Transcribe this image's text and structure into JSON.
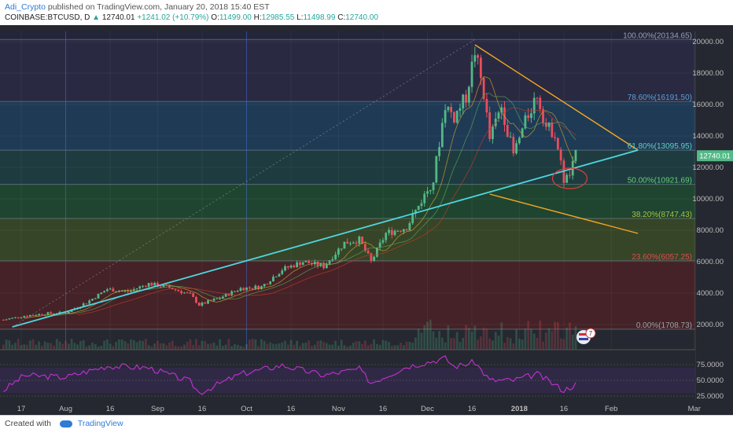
{
  "header": {
    "author": "Adi_Crypto",
    "published": "published on TradingView.com, January 20, 2018 15:40 EST",
    "symbol": "COINBASE:BTCUSD, D",
    "last": "12740.01",
    "change": "+1241.02 (+10.79%)",
    "open_label": "O:",
    "open": "11499.00",
    "high_label": "H:",
    "high": "12985.55",
    "low_label": "L:",
    "low": "11498.99",
    "close_label": "C:",
    "close": "12740.00"
  },
  "footer": {
    "created_with": "Created with",
    "brand": "TradingView"
  },
  "colors": {
    "background": "#252830",
    "up": "#53b987",
    "down": "#eb4d5c",
    "trendline": "#4fd6e0",
    "wedge": "#f5a623",
    "rsi": "#c231d0",
    "fib_zone_top": "#2a2a44",
    "fib_zone_786": "#1e3d5c",
    "fib_zone_618": "#1d3f42",
    "fib_zone_50": "#1f4a30",
    "fib_zone_382": "#3a4a26",
    "fib_zone_236": "#4a2126"
  },
  "chart_data": {
    "type": "candlestick",
    "price_axis": {
      "ticks": [
        2000,
        4000,
        6000,
        8000,
        10000,
        12000,
        14000,
        16000,
        18000,
        20000
      ],
      "labels": [
        "2000.00",
        "4000.00",
        "6000.00",
        "8000.00",
        "10000.00",
        "12000.00",
        "14000.00",
        "16000.00",
        "18000.00",
        "20000.00"
      ],
      "range": [
        1000,
        21400
      ]
    },
    "last_price_label": "12740.01",
    "time_axis": {
      "labels": [
        "17",
        "Aug",
        "16",
        "Sep",
        "16",
        "Oct",
        "16",
        "Nov",
        "16",
        "Dec",
        "16",
        "2018",
        "16",
        "Feb",
        "Mar"
      ],
      "dates": [
        "2017-07-17",
        "2017-08-01",
        "2017-08-16",
        "2017-09-01",
        "2017-09-16",
        "2017-10-01",
        "2017-10-16",
        "2017-11-01",
        "2017-11-16",
        "2017-12-01",
        "2017-12-16",
        "2018-01-01",
        "2018-01-16",
        "2018-02-01",
        "2018-03-01"
      ]
    },
    "fibonacci": [
      {
        "label": "100.00%(20134.65)",
        "price": 20134.65
      },
      {
        "label": "78.60%(16191.50)",
        "price": 16191.5
      },
      {
        "label": "61.80%(13095.95)",
        "price": 13095.95
      },
      {
        "label": "50.00%(10921.69)",
        "price": 10921.69
      },
      {
        "label": "38.20%(8747.43)",
        "price": 8747.43
      },
      {
        "label": "23.60%(6057.25)",
        "price": 6057.25
      },
      {
        "label": "0.00%(1708.73)",
        "price": 1708.73
      }
    ],
    "trendline": {
      "from": [
        "2017-07-14",
        1850
      ],
      "to": [
        "2018-02-10",
        13100
      ]
    },
    "wedge_upper": {
      "from": [
        "2017-12-17",
        19800
      ],
      "to": [
        "2018-02-10",
        13100
      ]
    },
    "wedge_lower": {
      "from": [
        "2017-12-22",
        10300
      ],
      "to": [
        "2018-02-10",
        7800
      ]
    },
    "close_prices_weekly": [
      [
        "2017-07-11",
        2300
      ],
      [
        "2017-07-18",
        2550
      ],
      [
        "2017-07-25",
        2700
      ],
      [
        "2017-08-01",
        2750
      ],
      [
        "2017-08-08",
        3400
      ],
      [
        "2017-08-15",
        4250
      ],
      [
        "2017-08-22",
        4100
      ],
      [
        "2017-08-29",
        4600
      ],
      [
        "2017-09-05",
        4350
      ],
      [
        "2017-09-12",
        3900
      ],
      [
        "2017-09-15",
        3250
      ],
      [
        "2017-09-22",
        3700
      ],
      [
        "2017-09-29",
        4300
      ],
      [
        "2017-10-06",
        4400
      ],
      [
        "2017-10-13",
        5500
      ],
      [
        "2017-10-20",
        6000
      ],
      [
        "2017-10-27",
        5700
      ],
      [
        "2017-11-03",
        7200
      ],
      [
        "2017-11-08",
        7400
      ],
      [
        "2017-11-12",
        6000
      ],
      [
        "2017-11-17",
        7800
      ],
      [
        "2017-11-24",
        8200
      ],
      [
        "2017-11-29",
        9900
      ],
      [
        "2017-12-03",
        11200
      ],
      [
        "2017-12-07",
        16000
      ],
      [
        "2017-12-10",
        15200
      ],
      [
        "2017-12-14",
        16500
      ],
      [
        "2017-12-17",
        19400
      ],
      [
        "2017-12-20",
        16700
      ],
      [
        "2017-12-22",
        13800
      ],
      [
        "2017-12-26",
        15900
      ],
      [
        "2017-12-30",
        12800
      ],
      [
        "2018-01-03",
        14900
      ],
      [
        "2018-01-07",
        16700
      ],
      [
        "2018-01-10",
        14600
      ],
      [
        "2018-01-13",
        14200
      ],
      [
        "2018-01-16",
        11200
      ],
      [
        "2018-01-18",
        11500
      ],
      [
        "2018-01-20",
        12740
      ]
    ],
    "rsi": {
      "ticks": [
        25,
        50,
        75
      ],
      "labels": [
        "25.0000",
        "50.0000",
        "75.0000"
      ],
      "range": [
        20,
        90
      ],
      "values_weekly": [
        [
          "2017-07-11",
          34
        ],
        [
          "2017-07-18",
          58
        ],
        [
          "2017-08-01",
          55
        ],
        [
          "2017-08-15",
          73
        ],
        [
          "2017-08-29",
          70
        ],
        [
          "2017-09-12",
          48
        ],
        [
          "2017-09-15",
          30
        ],
        [
          "2017-09-29",
          60
        ],
        [
          "2017-10-13",
          74
        ],
        [
          "2017-10-27",
          58
        ],
        [
          "2017-11-08",
          68
        ],
        [
          "2017-11-12",
          46
        ],
        [
          "2017-11-24",
          72
        ],
        [
          "2017-12-07",
          85
        ],
        [
          "2017-12-10",
          72
        ],
        [
          "2017-12-17",
          79
        ],
        [
          "2017-12-22",
          50
        ],
        [
          "2017-12-30",
          50
        ],
        [
          "2018-01-07",
          60
        ],
        [
          "2018-01-16",
          34
        ],
        [
          "2018-01-20",
          44
        ]
      ]
    }
  },
  "badge": {
    "count": "7"
  }
}
